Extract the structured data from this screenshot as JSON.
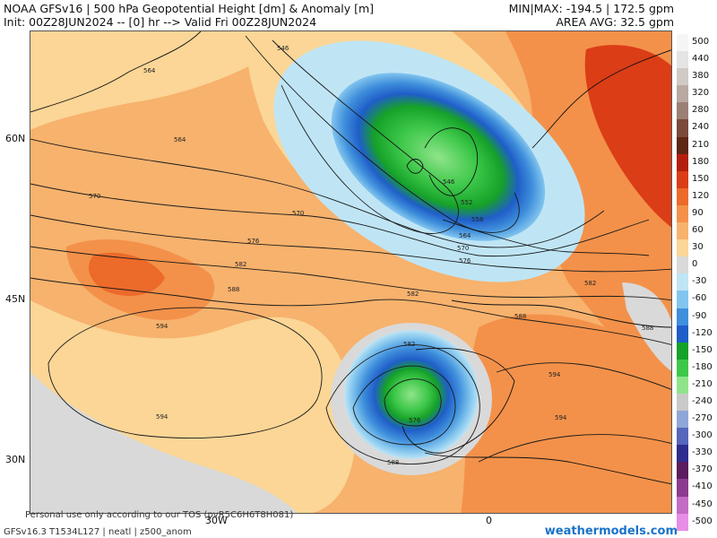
{
  "header": {
    "title": "NOAA GFSv16 | 500 hPa Geopotential Height [dm] & Anomaly [m]",
    "init_line": "Init: 00Z28JUN2024 -- [0] hr --> Valid Fri 00Z28JUN2024",
    "minmax": "MIN|MAX: -194.5 | 172.5 gpm",
    "area_avg": "AREA AVG: 32.5 gpm"
  },
  "axes": {
    "lat_labels": [
      "60N",
      "45N",
      "30N"
    ],
    "lon_labels": [
      "30W",
      "0"
    ]
  },
  "colorbar": {
    "ticks": [
      {
        "label": "500",
        "color": "#f5f5f5"
      },
      {
        "label": "440",
        "color": "#e4e4e4"
      },
      {
        "label": "380",
        "color": "#d0cac6"
      },
      {
        "label": "320",
        "color": "#b8a9a2"
      },
      {
        "label": "280",
        "color": "#9c7f74"
      },
      {
        "label": "240",
        "color": "#7a4a3a"
      },
      {
        "label": "210",
        "color": "#5e2614"
      },
      {
        "label": "180",
        "color": "#b31f0c"
      },
      {
        "label": "150",
        "color": "#db3d16"
      },
      {
        "label": "120",
        "color": "#ec6a2a"
      },
      {
        "label": "90",
        "color": "#f3914a"
      },
      {
        "label": "60",
        "color": "#f7b26d"
      },
      {
        "label": "30",
        "color": "#fbd696"
      },
      {
        "label": "0",
        "color": "#d9d9d9"
      },
      {
        "label": "-30",
        "color": "#bfe5f5"
      },
      {
        "label": "-60",
        "color": "#82c5ee"
      },
      {
        "label": "-90",
        "color": "#3f8fdc"
      },
      {
        "label": "-120",
        "color": "#1f5ec8"
      },
      {
        "label": "-150",
        "color": "#16a129"
      },
      {
        "label": "-180",
        "color": "#3ec84a"
      },
      {
        "label": "-210",
        "color": "#8fe48a"
      },
      {
        "label": "-240",
        "color": "#c9c9c9"
      },
      {
        "label": "-270",
        "color": "#8fa6d8"
      },
      {
        "label": "-300",
        "color": "#5566bb"
      },
      {
        "label": "-330",
        "color": "#2d2d8f"
      },
      {
        "label": "-370",
        "color": "#5a1d5e"
      },
      {
        "label": "-410",
        "color": "#8b3c8e"
      },
      {
        "label": "-450",
        "color": "#c46bc6"
      },
      {
        "label": "-500",
        "color": "#e78fe6"
      }
    ]
  },
  "contour_labels": [
    "546",
    "552",
    "558",
    "564",
    "570",
    "576",
    "582",
    "588",
    "594"
  ],
  "map_contour_texts": {
    "c546a": "546",
    "c546b": "546",
    "c552": "552",
    "c558": "558",
    "c564a": "564",
    "c564b": "564",
    "c564c": "564",
    "c570a": "570",
    "c570b": "570",
    "c570c": "570",
    "c576a": "576",
    "c576b": "576",
    "c576c": "576",
    "c582a": "582",
    "c582b": "582",
    "c582c": "582",
    "c582d": "582",
    "c588a": "588",
    "c588b": "588",
    "c588c": "588",
    "c588d": "588",
    "c594a": "594",
    "c594b": "594",
    "c594c": "594",
    "c594d": "594"
  },
  "footer": {
    "disclaimer": "Personal use only according to our TOS (pvR5C6H6T8H081)",
    "model_line": "GFSv16.3 T1534L127 | neatl | z500_anom",
    "brand": "weathermodels.com"
  }
}
